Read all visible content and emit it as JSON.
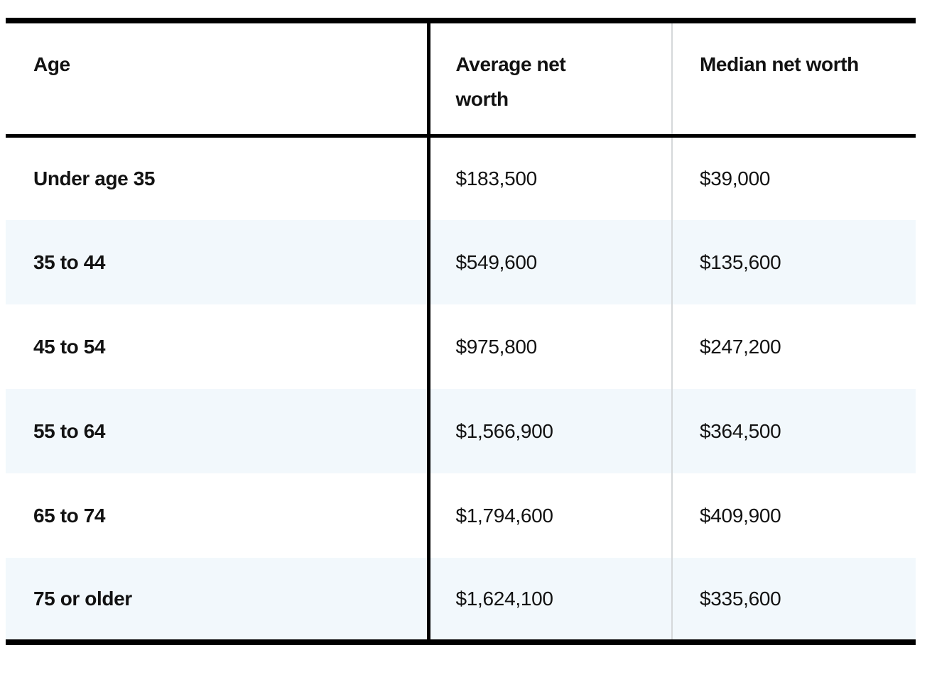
{
  "chart_data": {
    "type": "table",
    "columns": [
      "Age",
      "Average net worth",
      "Median net worth"
    ],
    "rows": [
      [
        "Under age 35",
        "$183,500",
        "$39,000"
      ],
      [
        "35 to 44",
        "$549,600",
        "$135,600"
      ],
      [
        "45 to 54",
        "$975,800",
        "$247,200"
      ],
      [
        "55 to 64",
        "$1,566,900",
        "$364,500"
      ],
      [
        "65 to 74",
        "$1,794,600",
        "$409,900"
      ],
      [
        "75 or older",
        "$1,624,100",
        "$335,600"
      ]
    ],
    "numeric": {
      "average_net_worth": [
        183500,
        549600,
        975800,
        1566900,
        1794600,
        1624100
      ],
      "median_net_worth": [
        39000,
        135600,
        247200,
        364500,
        409900,
        335600
      ]
    },
    "layout": {
      "stripe_color": "#f2f8fc",
      "frame_color": "#000000",
      "gray_divider_color": "#d5d8da",
      "text_color": "#121212",
      "grid": "horizontal header rule + two vertical dividers, zebra rows"
    }
  }
}
